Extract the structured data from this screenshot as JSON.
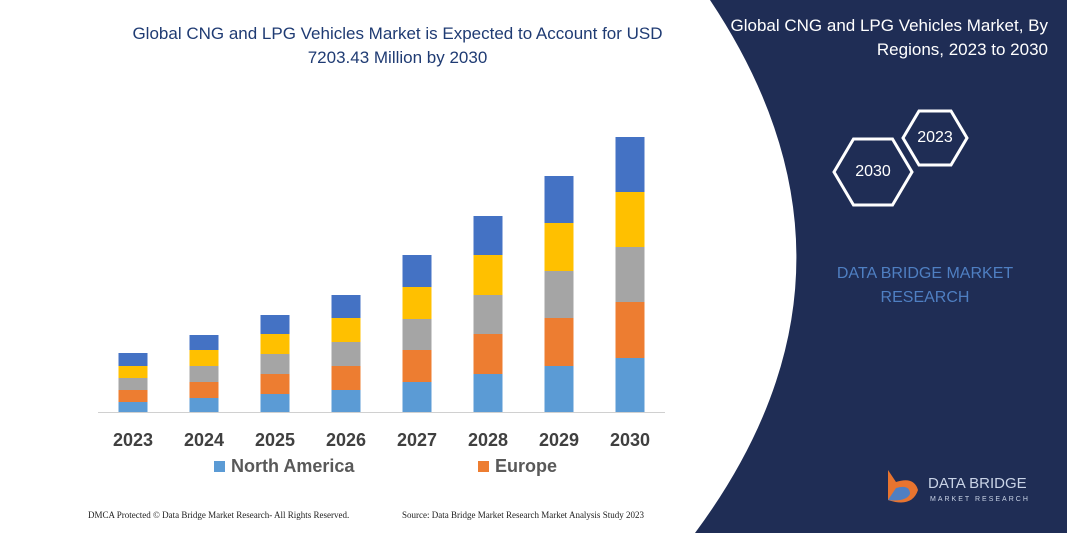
{
  "chart_data": {
    "type": "bar",
    "stacked": true,
    "title": "Global CNG and LPG Vehicles Market is Expected to Account for USD 7203.43 Million by 2030",
    "categories": [
      "2023",
      "2024",
      "2025",
      "2026",
      "2027",
      "2028",
      "2029",
      "2030"
    ],
    "series": [
      {
        "name": "North America",
        "color": "#5b9bd5",
        "values": [
          10,
          14,
          18,
          22,
          30,
          38,
          46,
          54
        ]
      },
      {
        "name": "Europe",
        "color": "#ed7d31",
        "values": [
          12,
          16,
          20,
          24,
          32,
          40,
          48,
          56
        ]
      },
      {
        "color": "#a5a5a5",
        "values": [
          12,
          16,
          20,
          24,
          31,
          39,
          47,
          55
        ]
      },
      {
        "color": "#ffc000",
        "values": [
          12,
          16,
          20,
          24,
          32,
          40,
          48,
          55
        ]
      },
      {
        "color": "#4472c4",
        "values": [
          13,
          15,
          19,
          23,
          32,
          39,
          47,
          55
        ]
      }
    ],
    "ylim": [
      0,
      300
    ]
  },
  "panel": {
    "title": "Global CNG and LPG Vehicles Market, By Regions, 2023 to 2030",
    "hex_labels": [
      "2023",
      "2030"
    ],
    "brand": "DATA BRIDGE MARKET RESEARCH",
    "logo_name": "DATA BRIDGE",
    "logo_sub": "MARKET RESEARCH"
  },
  "footer": {
    "left": "DMCA Protected © Data Bridge Market Research-  All Rights Reserved.",
    "right": "Source: Data Bridge Market Research  Market Analysis Study 2023"
  }
}
